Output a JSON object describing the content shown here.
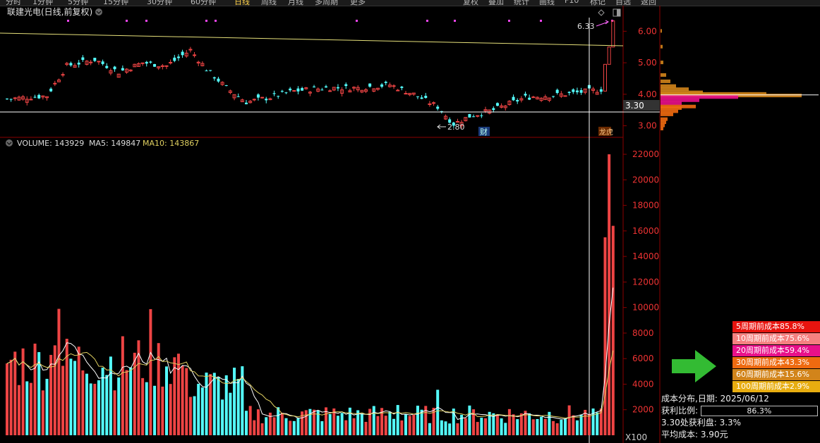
{
  "window": {
    "toolbar_left": [
      "分时",
      "1分钟",
      "5分钟",
      "15分钟",
      "30分钟",
      "60分钟",
      "日线",
      "周线",
      "月线",
      "多周期",
      "更多"
    ],
    "toolbar_right": [
      "复权",
      "叠加",
      "统计",
      "画线",
      "F10",
      "标记",
      "自选",
      "返回"
    ]
  },
  "price_panel": {
    "title": "联建光电(日线,前复权)",
    "high_label": "6.33",
    "low_label": "2.80",
    "current_price_tag": "3.30",
    "fin_marker": "财",
    "rank_marker": "龙虎",
    "y_ticks": [
      "6.00",
      "5.00",
      "4.00",
      "3.00"
    ]
  },
  "volume_panel": {
    "label_volume": "VOLUME: 143929",
    "label_ma5": "MA5: 149847",
    "label_ma10": "MA10: 143867",
    "y_ticks": [
      "22000",
      "20000",
      "18000",
      "16000",
      "14000",
      "12000",
      "10000",
      "8000",
      "6000",
      "4000",
      "2000"
    ],
    "unit": "X100"
  },
  "cost_distribution": {
    "rows": [
      {
        "text": "5周期前成本85.8%",
        "color": "#e8140f"
      },
      {
        "text": "10周期前成本75.6%",
        "color": "#f58080"
      },
      {
        "text": "20周期前成本59.4%",
        "color": "#e8108a"
      },
      {
        "text": "30周期前成本43.3%",
        "color": "#ef6a10"
      },
      {
        "text": "60周期前成本15.6%",
        "color": "#d2841a"
      },
      {
        "text": "100周期前成本2.9%",
        "color": "#e8ad10"
      }
    ],
    "date_line": "成本分布,日期: 2025/06/12",
    "profit_ratio_label": "获利比例:",
    "profit_ratio_value": "86.3%",
    "profit_at_price": "3.30处获利盘: 3.3%",
    "avg_cost": "平均成本: 3.90元"
  },
  "colors": {
    "up": "#ee4444",
    "down": "#54ffff",
    "ma5": "#ffffff",
    "ma10": "#e0d060",
    "grid": "#8b0000",
    "arrow": "#33bb33"
  },
  "chart_data": {
    "type": "candlestick+bar",
    "price_ylim": [
      2.7,
      6.5
    ],
    "volume_ylim": [
      0,
      22500
    ],
    "high": 6.33,
    "low": 2.8,
    "volume_series": [
      {
        "name": "VOLUME",
        "value": 143929
      },
      {
        "name": "MA5",
        "value": 149847
      },
      {
        "name": "MA10",
        "value": 143867
      }
    ],
    "profit_ratio_pct": 86.3
  }
}
